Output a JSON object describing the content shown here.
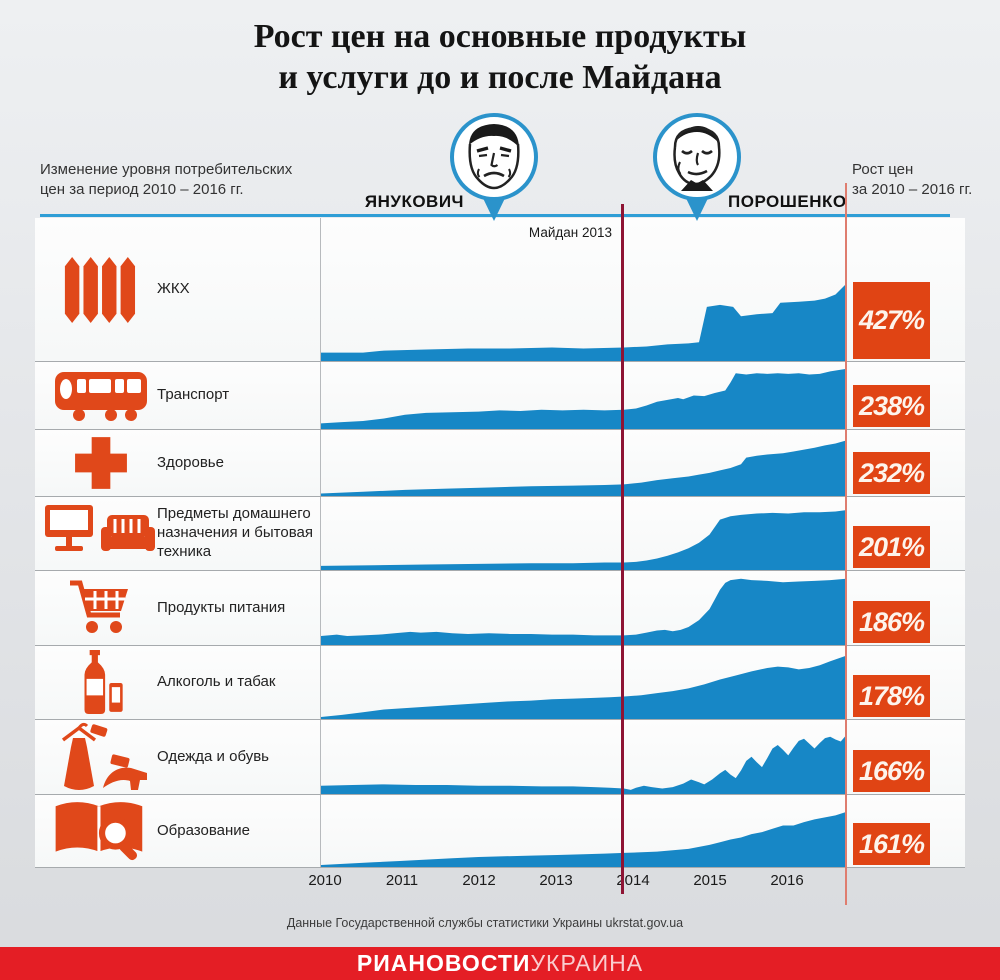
{
  "header": {
    "title_line1": "Рост цен на основные продукты",
    "title_line2": "и услуги до и после Майдана",
    "left_note_line1": "Изменение уровня потребительских",
    "left_note_line2": "цен за период 2010 – 2016 гг.",
    "right_note_line1": "Рост цен",
    "right_note_line2": "за 2010 – 2016 гг."
  },
  "presidents": {
    "left": "ЯНУКОВИЧ",
    "right": "ПОРОШЕНКО"
  },
  "annotations": {
    "maidan": "Майдан 2013"
  },
  "rows": [
    {
      "icon": "radiator-icon",
      "label": "ЖКХ",
      "value": "427%"
    },
    {
      "icon": "bus-icon",
      "label": "Транспорт",
      "value": "238%"
    },
    {
      "icon": "medical-cross-icon",
      "label": "Здоровье",
      "value": "232%"
    },
    {
      "icon": "home-appliances-icon",
      "label": "Предметы домашнего назначения и бытовая техника",
      "value": "201%"
    },
    {
      "icon": "shopping-cart-icon",
      "label": "Продукты питания",
      "value": "186%"
    },
    {
      "icon": "alcohol-bottle-icon",
      "label": "Алкоголь и табак",
      "value": "178%"
    },
    {
      "icon": "clothing-icon",
      "label": "Одежда и обувь",
      "value": "166%"
    },
    {
      "icon": "education-book-icon",
      "label": "Образование",
      "value": "161%"
    }
  ],
  "footer": {
    "source": "Данные Государственной службы статистики Украины ukrstat.gov.ua",
    "brand_bold": "РИАНОВОСТИ",
    "brand_light": "УКРАИНА"
  },
  "colors": {
    "area_blue": "#1787c6",
    "badge_orange": "#e04414",
    "icon_orange": "#e0481a",
    "maidan_line": "#8e1434",
    "accent_line": "#df7d6f",
    "header_line_blue": "#2f9ed6",
    "footer_red": "#e41e25",
    "pin_blue": "#2b93cb"
  },
  "chart_data": {
    "type": "area",
    "title": "Рост цен на основные продукты и услуги до и после Майдана",
    "x_ticks": [
      "2010",
      "2011",
      "2012",
      "2013",
      "2014",
      "2015",
      "2016"
    ],
    "x_axis_note": "период 2010 – 2016 гг., x задан в процентах ширины оси",
    "maidan_marker_x_percent": 57.7,
    "y_note": "y нормирован 0–100 по высоте строки; итоговый рост цен указан в value",
    "grid": false,
    "legend": "none",
    "series": [
      {
        "name": "ЖКХ",
        "final_growth": "427%",
        "points": [
          [
            0,
            8
          ],
          [
            8,
            8
          ],
          [
            12,
            10
          ],
          [
            20,
            11
          ],
          [
            28,
            12
          ],
          [
            36,
            12
          ],
          [
            44,
            13
          ],
          [
            50,
            12
          ],
          [
            57.7,
            13
          ],
          [
            62,
            14
          ],
          [
            66,
            16
          ],
          [
            70,
            17
          ],
          [
            72,
            18
          ],
          [
            73.5,
            52
          ],
          [
            76,
            54
          ],
          [
            78.5,
            52
          ],
          [
            80,
            43
          ],
          [
            83,
            45
          ],
          [
            86,
            46
          ],
          [
            87.5,
            56
          ],
          [
            91,
            57
          ],
          [
            94,
            58
          ],
          [
            96,
            60
          ],
          [
            98,
            64
          ],
          [
            100,
            74
          ]
        ]
      },
      {
        "name": "Транспорт",
        "final_growth": "238%",
        "points": [
          [
            0,
            9
          ],
          [
            4,
            11
          ],
          [
            8,
            13
          ],
          [
            12,
            17
          ],
          [
            16,
            23
          ],
          [
            20,
            26
          ],
          [
            25,
            27
          ],
          [
            30,
            28
          ],
          [
            34,
            30
          ],
          [
            38,
            29
          ],
          [
            42,
            31
          ],
          [
            46,
            30
          ],
          [
            50,
            31
          ],
          [
            54,
            30
          ],
          [
            57.7,
            31
          ],
          [
            60,
            33
          ],
          [
            62,
            38
          ],
          [
            64,
            44
          ],
          [
            66,
            47
          ],
          [
            68,
            50
          ],
          [
            69,
            48
          ],
          [
            71,
            54
          ],
          [
            73,
            53
          ],
          [
            75,
            58
          ],
          [
            77,
            62
          ],
          [
            78,
            75
          ],
          [
            79,
            90
          ],
          [
            81,
            88
          ],
          [
            83,
            90
          ],
          [
            85,
            89
          ],
          [
            87,
            90
          ],
          [
            89,
            89
          ],
          [
            91,
            90
          ],
          [
            93,
            88
          ],
          [
            95,
            89
          ],
          [
            97,
            93
          ],
          [
            100,
            97
          ]
        ]
      },
      {
        "name": "Здоровье",
        "final_growth": "232%",
        "points": [
          [
            0,
            4
          ],
          [
            8,
            7
          ],
          [
            16,
            10
          ],
          [
            24,
            12
          ],
          [
            32,
            14
          ],
          [
            40,
            16
          ],
          [
            48,
            17
          ],
          [
            54,
            18
          ],
          [
            57.7,
            19
          ],
          [
            61,
            22
          ],
          [
            64,
            26
          ],
          [
            67,
            29
          ],
          [
            70,
            32
          ],
          [
            72,
            35
          ],
          [
            74,
            38
          ],
          [
            76,
            42
          ],
          [
            78,
            46
          ],
          [
            80,
            52
          ],
          [
            81,
            63
          ],
          [
            83,
            66
          ],
          [
            85,
            68
          ],
          [
            88,
            70
          ],
          [
            90,
            73
          ],
          [
            92,
            76
          ],
          [
            94,
            79
          ],
          [
            96,
            83
          ],
          [
            98,
            86
          ],
          [
            100,
            91
          ]
        ]
      },
      {
        "name": "Предметы домашнего назначения и бытовая техника",
        "final_growth": "201%",
        "points": [
          [
            0,
            6
          ],
          [
            10,
            7
          ],
          [
            20,
            8
          ],
          [
            30,
            9
          ],
          [
            40,
            10
          ],
          [
            48,
            10
          ],
          [
            54,
            11
          ],
          [
            57.7,
            11
          ],
          [
            60,
            12
          ],
          [
            62,
            14
          ],
          [
            64,
            17
          ],
          [
            66,
            21
          ],
          [
            68,
            26
          ],
          [
            70,
            32
          ],
          [
            72,
            40
          ],
          [
            74,
            52
          ],
          [
            75,
            63
          ],
          [
            76,
            74
          ],
          [
            78,
            79
          ],
          [
            80,
            81
          ],
          [
            83,
            83
          ],
          [
            86,
            84
          ],
          [
            89,
            83
          ],
          [
            92,
            85
          ],
          [
            95,
            85
          ],
          [
            98,
            86
          ],
          [
            100,
            88
          ]
        ]
      },
      {
        "name": "Продукты питания",
        "final_growth": "186%",
        "points": [
          [
            0,
            13
          ],
          [
            3,
            15
          ],
          [
            5,
            13
          ],
          [
            8,
            14
          ],
          [
            11,
            15
          ],
          [
            14,
            17
          ],
          [
            17,
            19
          ],
          [
            19,
            18
          ],
          [
            22,
            19
          ],
          [
            25,
            17
          ],
          [
            28,
            16
          ],
          [
            32,
            17
          ],
          [
            36,
            16
          ],
          [
            40,
            16
          ],
          [
            44,
            15
          ],
          [
            48,
            15
          ],
          [
            52,
            14
          ],
          [
            55,
            14
          ],
          [
            57.7,
            14
          ],
          [
            60,
            15
          ],
          [
            62,
            18
          ],
          [
            64,
            21
          ],
          [
            65.5,
            22
          ],
          [
            67,
            20
          ],
          [
            68.5,
            22
          ],
          [
            70,
            26
          ],
          [
            72,
            36
          ],
          [
            74,
            52
          ],
          [
            75,
            66
          ],
          [
            76,
            80
          ],
          [
            77,
            90
          ],
          [
            78,
            94
          ],
          [
            80,
            96
          ],
          [
            82,
            94
          ],
          [
            85,
            93
          ],
          [
            88,
            91
          ],
          [
            91,
            92
          ],
          [
            94,
            93
          ],
          [
            97,
            94
          ],
          [
            100,
            96
          ]
        ]
      },
      {
        "name": "Алкоголь и табак",
        "final_growth": "178%",
        "points": [
          [
            0,
            3
          ],
          [
            4,
            6
          ],
          [
            8,
            10
          ],
          [
            12,
            14
          ],
          [
            16,
            16
          ],
          [
            20,
            18
          ],
          [
            24,
            20
          ],
          [
            28,
            22
          ],
          [
            32,
            24
          ],
          [
            36,
            26
          ],
          [
            40,
            27
          ],
          [
            44,
            29
          ],
          [
            48,
            30
          ],
          [
            52,
            31
          ],
          [
            55,
            32
          ],
          [
            57.7,
            33
          ],
          [
            61,
            35
          ],
          [
            64,
            38
          ],
          [
            67,
            41
          ],
          [
            70,
            45
          ],
          [
            73,
            51
          ],
          [
            76,
            58
          ],
          [
            79,
            64
          ],
          [
            82,
            70
          ],
          [
            85,
            75
          ],
          [
            87,
            77
          ],
          [
            89,
            76
          ],
          [
            91,
            73
          ],
          [
            93,
            75
          ],
          [
            95,
            79
          ],
          [
            97,
            85
          ],
          [
            100,
            93
          ]
        ]
      },
      {
        "name": "Одежда и обувь",
        "final_growth": "166%",
        "points": [
          [
            0,
            12
          ],
          [
            6,
            13
          ],
          [
            12,
            14
          ],
          [
            18,
            13
          ],
          [
            24,
            13
          ],
          [
            30,
            12
          ],
          [
            36,
            12
          ],
          [
            42,
            11
          ],
          [
            48,
            11
          ],
          [
            52,
            10
          ],
          [
            55,
            9
          ],
          [
            57.7,
            8
          ],
          [
            59,
            6
          ],
          [
            60,
            9
          ],
          [
            61.5,
            12
          ],
          [
            63,
            10
          ],
          [
            65,
            8
          ],
          [
            67,
            10
          ],
          [
            69,
            15
          ],
          [
            70.5,
            21
          ],
          [
            72,
            17
          ],
          [
            73,
            14
          ],
          [
            74.5,
            21
          ],
          [
            76,
            30
          ],
          [
            77,
            35
          ],
          [
            78,
            28
          ],
          [
            79,
            23
          ],
          [
            80,
            34
          ],
          [
            81,
            48
          ],
          [
            82,
            54
          ],
          [
            83,
            46
          ],
          [
            84,
            39
          ],
          [
            85,
            52
          ],
          [
            86,
            66
          ],
          [
            87,
            71
          ],
          [
            88,
            64
          ],
          [
            89,
            56
          ],
          [
            90,
            67
          ],
          [
            91,
            77
          ],
          [
            92,
            80
          ],
          [
            93,
            73
          ],
          [
            94,
            66
          ],
          [
            95,
            74
          ],
          [
            96,
            81
          ],
          [
            97,
            83
          ],
          [
            98,
            79
          ],
          [
            99,
            76
          ],
          [
            100,
            85
          ]
        ]
      },
      {
        "name": "Образование",
        "final_growth": "161%",
        "points": [
          [
            0,
            3
          ],
          [
            5,
            5
          ],
          [
            10,
            7
          ],
          [
            15,
            9
          ],
          [
            20,
            11
          ],
          [
            25,
            13
          ],
          [
            30,
            15
          ],
          [
            35,
            16
          ],
          [
            40,
            17
          ],
          [
            45,
            18
          ],
          [
            50,
            19
          ],
          [
            54,
            20
          ],
          [
            57.7,
            21
          ],
          [
            61,
            22
          ],
          [
            64,
            23
          ],
          [
            67,
            25
          ],
          [
            70,
            27
          ],
          [
            72,
            30
          ],
          [
            74,
            33
          ],
          [
            76,
            37
          ],
          [
            78,
            41
          ],
          [
            80,
            44
          ],
          [
            82,
            49
          ],
          [
            84,
            52
          ],
          [
            86,
            57
          ],
          [
            88,
            62
          ],
          [
            90,
            62
          ],
          [
            92,
            67
          ],
          [
            94,
            71
          ],
          [
            96,
            74
          ],
          [
            98,
            77
          ],
          [
            100,
            82
          ]
        ]
      }
    ]
  }
}
